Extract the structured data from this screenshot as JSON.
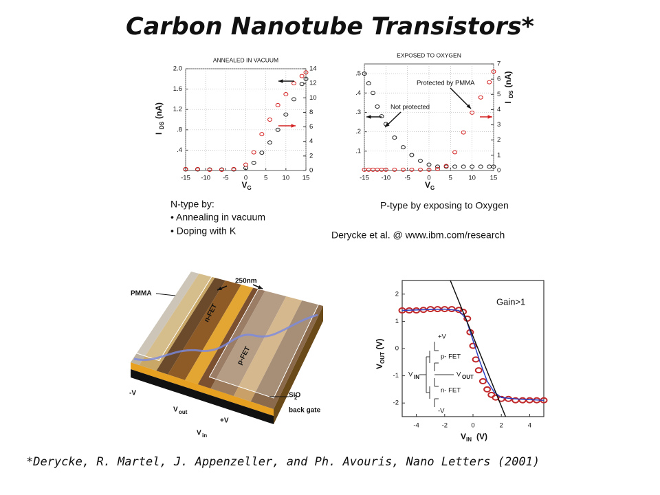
{
  "title": "Carbon Nanotube Transistors*",
  "captions": {
    "ntype": "N-type by:",
    "ntype_items": [
      "• Annealing in vacuum",
      "• Doping with K"
    ],
    "ptype": "P-type by exposing to Oxygen",
    "credit": "Derycke et al. @ www.ibm.com/research"
  },
  "citation": "*Derycke, R. Martel, J. Appenzeller, and Ph. Avouris, Nano Letters (2001)",
  "figure": {
    "pmma": "PMMA",
    "width": "250nm",
    "nfet": "n-FET",
    "pfet": "p-FET",
    "sio2": [
      "SiO",
      "2"
    ],
    "gate": "back gate",
    "mv": "-V",
    "vout": [
      "V",
      "out"
    ],
    "pv": "+V",
    "vin": [
      "V",
      "in"
    ]
  },
  "chart_data": [
    {
      "type": "scatter",
      "title": "ANNEALED IN VACUUM",
      "xlabel": [
        "V",
        "G"
      ],
      "ylabel": [
        "I",
        "DS",
        "(nA)"
      ],
      "x": [
        -15,
        -12,
        -9,
        -6,
        -3,
        0,
        2,
        4,
        6,
        8,
        10,
        12,
        14,
        15
      ],
      "xlim": [
        -15,
        15
      ],
      "xticks": [
        -15,
        -10,
        -5,
        0,
        5,
        10,
        15
      ],
      "ylim": [
        0,
        2.0
      ],
      "yticks": [
        {
          "value": 0.4,
          "label": ".4"
        },
        {
          "value": 0.8,
          "label": ".8"
        },
        1.2,
        1.6,
        {
          "value": 2.0,
          "label": "2.0"
        }
      ],
      "y2lim": [
        0,
        14
      ],
      "y2ticks": [
        0,
        2,
        4,
        6,
        8,
        10,
        12,
        14
      ],
      "grid": true,
      "series": [
        {
          "color": "#222222",
          "values": [
            0.02,
            0.02,
            0.02,
            0.02,
            0.02,
            0.05,
            0.15,
            0.35,
            0.55,
            0.8,
            1.1,
            1.4,
            1.7,
            1.8
          ]
        },
        {
          "color": "#d42020",
          "axis": "y2",
          "values": [
            0.2,
            0.2,
            0.1,
            0.1,
            0.2,
            0.8,
            2.5,
            5,
            7,
            9,
            10.5,
            12,
            13,
            13.5
          ]
        }
      ]
    },
    {
      "type": "scatter",
      "title": "EXPOSED TO OXYGEN",
      "xlabel": [
        "V",
        "G"
      ],
      "y2label": [
        "I",
        "DS",
        "(nA)"
      ],
      "annotations": [
        "Protected by PMMA",
        "Not protected"
      ],
      "x": [
        -15,
        -14,
        -13,
        -12,
        -11,
        -10,
        -8,
        -6,
        -4,
        -2,
        0,
        2,
        4,
        6,
        8,
        10,
        12,
        14,
        15
      ],
      "xlim": [
        -15,
        15
      ],
      "xticks": [
        -15,
        -10,
        -5,
        0,
        5,
        10,
        15
      ],
      "ylim": [
        0,
        0.55
      ],
      "yticks": [
        {
          "value": 0.1,
          "label": ".1"
        },
        {
          "value": 0.2,
          "label": ".2"
        },
        {
          "value": 0.3,
          "label": ".3"
        },
        {
          "value": 0.4,
          "label": ".4"
        },
        {
          "value": 0.5,
          "label": ".5"
        }
      ],
      "y2lim": [
        0,
        7
      ],
      "y2ticks": [
        0,
        1,
        2,
        3,
        4,
        5,
        6,
        7
      ],
      "grid": true,
      "series": [
        {
          "color": "#222222",
          "values": [
            0.5,
            0.45,
            0.4,
            0.33,
            0.28,
            0.24,
            0.17,
            0.12,
            0.08,
            0.05,
            0.03,
            0.02,
            0.02,
            0.02,
            0.02,
            0.02,
            0.02,
            0.02,
            0.02
          ]
        },
        {
          "color": "#d42020",
          "axis": "y2",
          "values": [
            0.05,
            0.05,
            0.05,
            0.05,
            0.05,
            0.05,
            0.05,
            0.05,
            0.05,
            0.05,
            0.05,
            0.1,
            0.3,
            1.2,
            2.5,
            3.8,
            4.8,
            5.8,
            6.5
          ]
        }
      ]
    },
    {
      "type": "scatter",
      "annotations": [
        "Gain>1"
      ],
      "xlabel": [
        "V",
        "IN",
        "(V)"
      ],
      "ylabel": [
        "V",
        "OUT",
        "(V)"
      ],
      "xlim": [
        -5,
        5
      ],
      "xticks": [
        -4,
        -2,
        0,
        2,
        4
      ],
      "ylim": [
        -2.5,
        2.5
      ],
      "yticks": [
        -2,
        -1,
        0,
        1,
        2
      ],
      "grid": false,
      "inset": {
        "top": "+V",
        "pfet": "p- FET",
        "vin": [
          "V",
          "IN"
        ],
        "vout": [
          "V",
          "OUT"
        ],
        "nfet": "n- FET",
        "bottom": "-V"
      },
      "series": [
        {
          "color": "#c0282a",
          "x": [
            -5,
            -4.5,
            -4,
            -3.5,
            -3,
            -2.5,
            -2,
            -1.5,
            -1,
            -0.7,
            -0.4,
            -0.2,
            0,
            0.2,
            0.4,
            0.7,
            1,
            1.3,
            1.6,
            2,
            2.5,
            3,
            3.5,
            4,
            4.5,
            5
          ],
          "values": [
            1.4,
            1.4,
            1.4,
            1.42,
            1.45,
            1.45,
            1.45,
            1.45,
            1.42,
            1.35,
            1.1,
            0.6,
            0.1,
            -0.4,
            -0.8,
            -1.2,
            -1.5,
            -1.7,
            -1.8,
            -1.85,
            -1.85,
            -1.9,
            -1.9,
            -1.9,
            -1.9,
            -1.9
          ]
        },
        {
          "color": "#2a3fc0",
          "line": true,
          "x": [
            -5,
            -2,
            -1,
            -0.5,
            0,
            0.5,
            1,
            1.5,
            2,
            3,
            5
          ],
          "values": [
            1.4,
            1.45,
            1.4,
            1.1,
            0.3,
            -0.5,
            -1.2,
            -1.6,
            -1.8,
            -1.85,
            -1.9
          ]
        },
        {
          "color": "#111111",
          "line": true,
          "x": [
            -1.6,
            2.3
          ],
          "values": [
            2.5,
            -2.5
          ]
        }
      ]
    }
  ]
}
